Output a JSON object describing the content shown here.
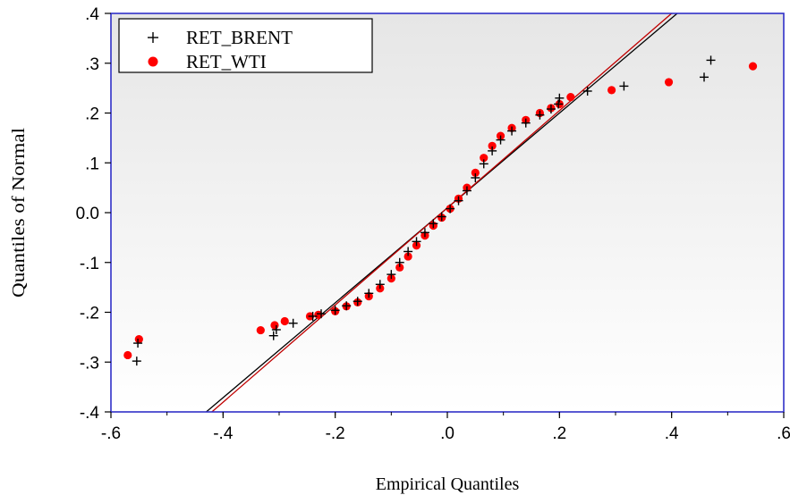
{
  "chart_data": {
    "type": "scatter",
    "title": "",
    "xlabel": "Empirical Quantiles",
    "ylabel": "Quantiles of Normal",
    "xlim": [
      -0.6,
      0.6
    ],
    "ylim": [
      -0.4,
      0.4
    ],
    "x_ticks": [
      -0.6,
      -0.4,
      -0.2,
      0.0,
      0.2,
      0.4,
      0.6
    ],
    "x_tick_labels": [
      "-.6",
      "-.4",
      "-.2",
      ".0",
      ".2",
      ".4",
      ".6"
    ],
    "y_ticks": [
      -0.4,
      -0.3,
      -0.2,
      -0.1,
      0.0,
      0.1,
      0.2,
      0.3,
      0.4
    ],
    "y_tick_labels": [
      "-.4",
      "-.3",
      "-.2",
      "-.1",
      "0.0",
      ".1",
      ".2",
      ".3",
      ".4"
    ],
    "grid": false,
    "legend_position": "top-left",
    "frame_color": "#3030c8",
    "reference_lines": [
      {
        "x1": -0.43,
        "y1": -0.4,
        "x2": 0.41,
        "y2": 0.4,
        "color": "#000000"
      },
      {
        "x1": -0.42,
        "y1": -0.4,
        "x2": 0.4,
        "y2": 0.4,
        "color": "#c00000"
      }
    ],
    "series": [
      {
        "name": "RET_BRENT",
        "marker": "plus",
        "color": "#000000",
        "points": [
          [
            -0.554,
            -0.298
          ],
          [
            -0.552,
            -0.262
          ],
          [
            -0.31,
            -0.247
          ],
          [
            -0.305,
            -0.235
          ],
          [
            -0.275,
            -0.222
          ],
          [
            -0.24,
            -0.208
          ],
          [
            -0.225,
            -0.203
          ],
          [
            -0.2,
            -0.196
          ],
          [
            -0.18,
            -0.187
          ],
          [
            -0.16,
            -0.178
          ],
          [
            -0.14,
            -0.162
          ],
          [
            -0.12,
            -0.144
          ],
          [
            -0.1,
            -0.124
          ],
          [
            -0.085,
            -0.1
          ],
          [
            -0.07,
            -0.078
          ],
          [
            -0.055,
            -0.058
          ],
          [
            -0.04,
            -0.04
          ],
          [
            -0.025,
            -0.022
          ],
          [
            -0.01,
            -0.008
          ],
          [
            0.005,
            0.008
          ],
          [
            0.02,
            0.024
          ],
          [
            0.035,
            0.044
          ],
          [
            0.05,
            0.07
          ],
          [
            0.065,
            0.098
          ],
          [
            0.08,
            0.124
          ],
          [
            0.095,
            0.146
          ],
          [
            0.115,
            0.164
          ],
          [
            0.14,
            0.18
          ],
          [
            0.165,
            0.196
          ],
          [
            0.185,
            0.208
          ],
          [
            0.198,
            0.218
          ],
          [
            0.2,
            0.23
          ],
          [
            0.25,
            0.244
          ],
          [
            0.315,
            0.254
          ],
          [
            0.458,
            0.272
          ],
          [
            0.47,
            0.306
          ]
        ]
      },
      {
        "name": "RET_WTI",
        "marker": "dot",
        "color": "#ff0000",
        "points": [
          [
            -0.57,
            -0.286
          ],
          [
            -0.55,
            -0.254
          ],
          [
            -0.333,
            -0.236
          ],
          [
            -0.308,
            -0.226
          ],
          [
            -0.29,
            -0.218
          ],
          [
            -0.245,
            -0.208
          ],
          [
            -0.23,
            -0.205
          ],
          [
            -0.2,
            -0.198
          ],
          [
            -0.18,
            -0.188
          ],
          [
            -0.16,
            -0.18
          ],
          [
            -0.14,
            -0.168
          ],
          [
            -0.12,
            -0.152
          ],
          [
            -0.1,
            -0.132
          ],
          [
            -0.085,
            -0.11
          ],
          [
            -0.07,
            -0.088
          ],
          [
            -0.055,
            -0.066
          ],
          [
            -0.04,
            -0.046
          ],
          [
            -0.025,
            -0.026
          ],
          [
            -0.01,
            -0.01
          ],
          [
            0.005,
            0.008
          ],
          [
            0.02,
            0.028
          ],
          [
            0.035,
            0.05
          ],
          [
            0.05,
            0.08
          ],
          [
            0.065,
            0.11
          ],
          [
            0.08,
            0.134
          ],
          [
            0.095,
            0.154
          ],
          [
            0.115,
            0.17
          ],
          [
            0.14,
            0.186
          ],
          [
            0.165,
            0.2
          ],
          [
            0.185,
            0.21
          ],
          [
            0.2,
            0.218
          ],
          [
            0.22,
            0.232
          ],
          [
            0.293,
            0.246
          ],
          [
            0.395,
            0.262
          ],
          [
            0.545,
            0.294
          ]
        ]
      }
    ]
  }
}
